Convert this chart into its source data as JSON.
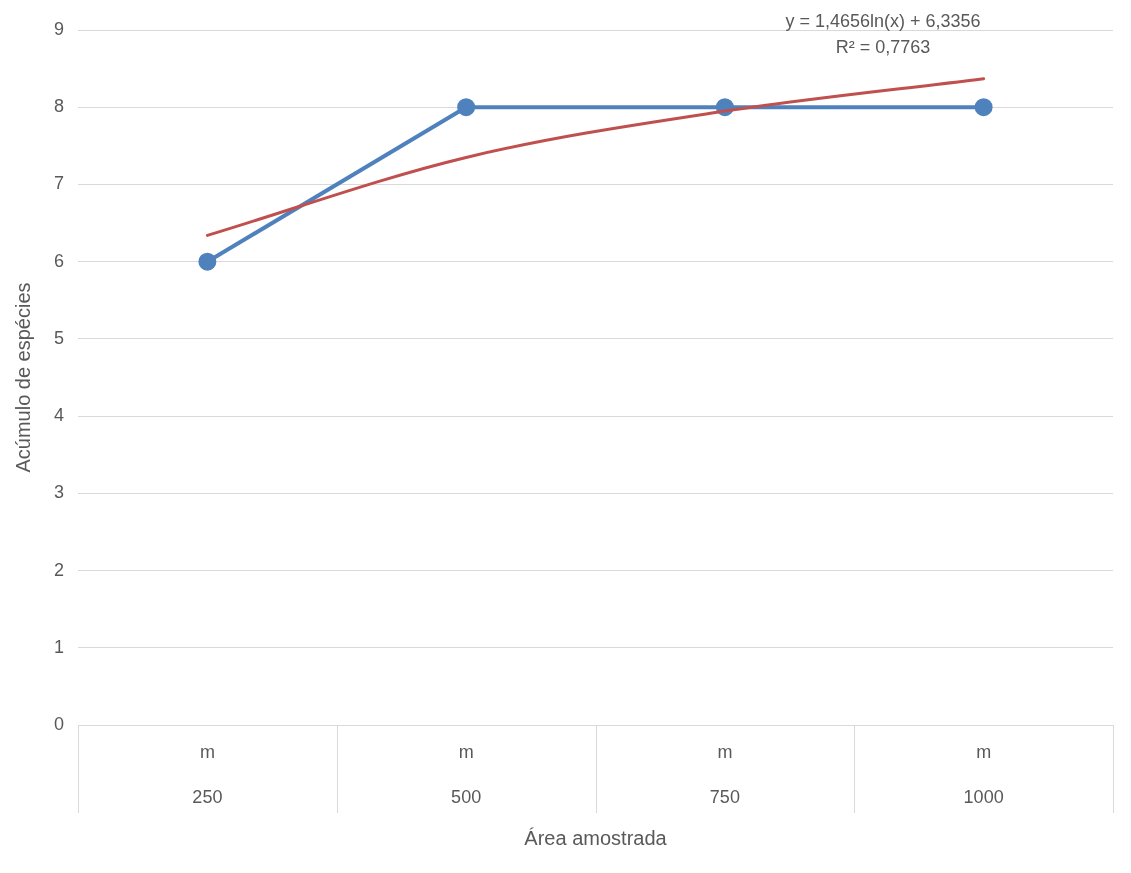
{
  "chart_data": {
    "type": "line",
    "categories": [
      "m\n250",
      "m\n500",
      "m\n750",
      "m\n1000"
    ],
    "series": [
      {
        "color": "#4f81bd",
        "values": [
          6,
          8,
          8,
          8
        ],
        "marker": "circle"
      },
      {
        "color": "#c0504d",
        "values": [
          6.34,
          7.35,
          7.95,
          8.37
        ],
        "marker": "none"
      }
    ],
    "xlabel": "Área amostrada",
    "ylabel": "Acúmulo de espécies",
    "ylim": [
      0,
      9
    ],
    "yticks": [
      0,
      1,
      2,
      3,
      4,
      5,
      6,
      7,
      8,
      9
    ],
    "grid": "y",
    "legend": false,
    "annotations": [
      "y = 1,4656ln(x) + 6,3356",
      "R² = 0,7763"
    ]
  }
}
